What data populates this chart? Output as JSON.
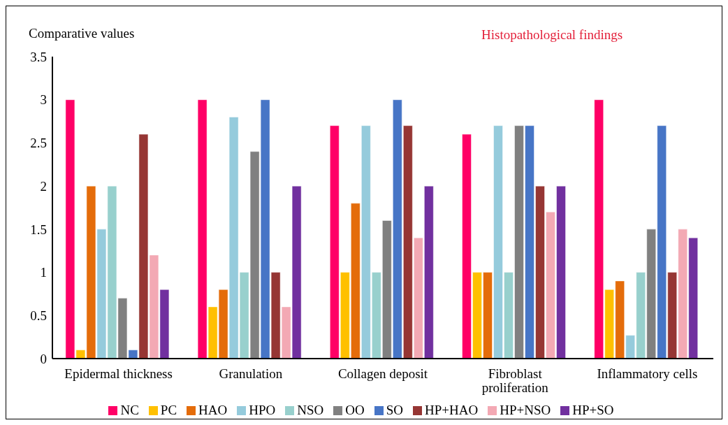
{
  "chart_data": {
    "type": "bar",
    "title": "Histopathological findings",
    "ylabel": "Comparative values",
    "categories": [
      "Epidermal thickness",
      "Granulation",
      "Collagen deposit",
      "Fibroblast proliferation",
      "Inflammatory cells"
    ],
    "series": [
      {
        "name": "NC",
        "color": "#ff0066",
        "values": [
          3,
          3,
          2.7,
          2.6,
          3
        ]
      },
      {
        "name": "PC",
        "color": "#ffc000",
        "values": [
          0.1,
          0.6,
          1,
          1,
          0.8
        ]
      },
      {
        "name": "HAO",
        "color": "#e46c0a",
        "values": [
          2,
          0.8,
          1.8,
          1,
          0.9
        ]
      },
      {
        "name": "HPO",
        "color": "#95cbdc",
        "values": [
          1.5,
          2.8,
          2.7,
          2.7,
          0.27
        ]
      },
      {
        "name": "NSO",
        "color": "#98d0cd",
        "values": [
          2,
          1,
          1,
          1,
          1
        ]
      },
      {
        "name": "OO",
        "color": "#808080",
        "values": [
          0.7,
          2.4,
          1.6,
          2.7,
          1.5
        ]
      },
      {
        "name": "SO",
        "color": "#4775c6",
        "values": [
          0.1,
          3,
          3,
          2.7,
          2.7
        ]
      },
      {
        "name": "HP+HAO",
        "color": "#963634",
        "values": [
          2.6,
          1,
          2.7,
          2,
          1
        ]
      },
      {
        "name": "HP+NSO",
        "color": "#f3a9b4",
        "values": [
          1.2,
          0.6,
          1.4,
          1.7,
          1.5
        ]
      },
      {
        "name": "HP+SO",
        "color": "#71309f",
        "values": [
          0.8,
          2,
          2,
          2,
          1.4
        ]
      }
    ],
    "ylim": [
      0,
      3.5
    ],
    "yticks": [
      0,
      0.5,
      1,
      1.5,
      2,
      2.5,
      3,
      3.5
    ],
    "grid": false,
    "legend": "bottom"
  }
}
